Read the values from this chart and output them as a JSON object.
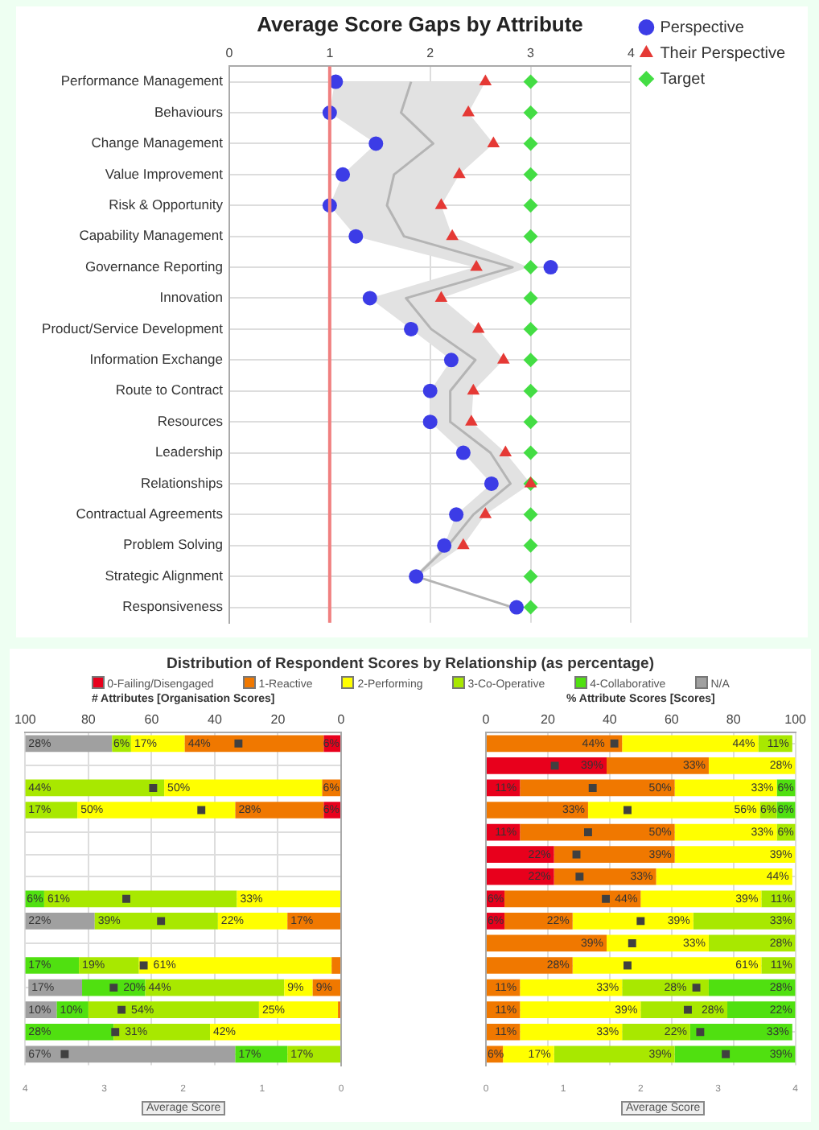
{
  "chart_data": [
    {
      "type": "scatter",
      "title": "Average Score Gaps by Attribute",
      "orientation": "horizontal",
      "categories": [
        "Performance Management",
        "Behaviours",
        "Change Management",
        "Value Improvement",
        "Risk & Opportunity",
        "Capability Management",
        "Governance Reporting",
        "Innovation",
        "Product/Service Development",
        "Information Exchange",
        "Route to Contract",
        "Resources",
        "Leadership",
        "Relationships",
        "Contractual Agreements",
        "Problem Solving",
        "Strategic Alignment",
        "Responsiveness"
      ],
      "xlim": [
        0,
        4
      ],
      "xticks": [
        0,
        1,
        2,
        3,
        4
      ],
      "grid": true,
      "legend": "right",
      "ref_lines": [
        {
          "axis": "x",
          "value": 1,
          "color": "#f08080"
        }
      ],
      "series": [
        {
          "type": "line",
          "color": "#b4b4b4",
          "marker": "none",
          "values": [
            1.81,
            1.71,
            2.03,
            1.64,
            1.57,
            1.74,
            2.82,
            1.76,
            2.01,
            2.45,
            2.2,
            2.2,
            2.6,
            2.8,
            2.43,
            2.18,
            1.86,
            2.82
          ],
          "lower": [
            1.05,
            1.0,
            1.46,
            1.13,
            1.0,
            1.26,
            2.44,
            1.4,
            1.81,
            2.21,
            2.0,
            2.0,
            2.33,
            2.61,
            2.26,
            2.14,
            1.84,
            2.8
          ],
          "upper": [
            2.55,
            2.38,
            2.63,
            2.29,
            2.11,
            2.22,
            2.98,
            2.11,
            2.48,
            2.73,
            2.43,
            2.41,
            2.75,
            3.0,
            2.55,
            2.33,
            1.88,
            2.84
          ]
        },
        {
          "name": "Perspective",
          "color": "#3c3ce6",
          "marker": "circle",
          "values": [
            1.06,
            1.0,
            1.46,
            1.13,
            1.0,
            1.26,
            3.2,
            1.4,
            1.81,
            2.21,
            2.0,
            2.0,
            2.33,
            2.61,
            2.26,
            2.14,
            1.86,
            2.86
          ]
        },
        {
          "name": "Their Perspective",
          "color": "#e53935",
          "marker": "triangle",
          "values": [
            2.55,
            2.38,
            2.63,
            2.29,
            2.11,
            2.22,
            2.46,
            2.11,
            2.48,
            2.73,
            2.43,
            2.41,
            2.75,
            3.0,
            2.55,
            2.33,
            null,
            null
          ]
        },
        {
          "name": "Target",
          "color": "#44dd44",
          "marker": "diamond",
          "values": [
            3,
            3,
            3,
            3,
            3,
            3,
            3,
            3,
            3,
            3,
            3,
            3,
            3,
            3,
            3,
            3,
            3,
            3
          ]
        }
      ]
    },
    {
      "type": "bar",
      "title": "Distribution of Respondent Scores by Relationship (as percentage)",
      "orientation": "horizontal",
      "stacked": true,
      "legend": "top",
      "grid": true,
      "categories": [
        null,
        null,
        null,
        null,
        null,
        null,
        null,
        null,
        null,
        null,
        null,
        null,
        null,
        null,
        null
      ],
      "xlabel": "# Attributes [Organisation Scores]",
      "xlim": [
        100,
        0
      ],
      "xticks": [
        100,
        80,
        60,
        40,
        20,
        0
      ],
      "x2label": "Average Score",
      "x2lim": [
        4,
        0
      ],
      "x2ticks": [
        4,
        3,
        2,
        1,
        0
      ],
      "series": [
        {
          "name": "0-Failing/Disengaged",
          "color": "#e8001c",
          "values": [
            5.5,
            null,
            null,
            5.5,
            null,
            null,
            null,
            null,
            null,
            null,
            null,
            null,
            null,
            null,
            null
          ],
          "value_labels": [
            "6%",
            null,
            null,
            "6%",
            null,
            null,
            null,
            null,
            null,
            null,
            null,
            null,
            null,
            null,
            null
          ]
        },
        {
          "name": "1-Reactive",
          "color": "#f07800",
          "values": [
            44,
            null,
            6,
            28,
            null,
            null,
            null,
            null,
            17,
            null,
            3,
            9,
            1,
            null,
            null
          ],
          "value_labels": [
            "44%",
            null,
            "6%",
            "28%",
            null,
            null,
            null,
            null,
            "17%",
            null,
            null,
            "9%",
            null,
            null,
            null
          ]
        },
        {
          "name": "2-Performing",
          "color": "#ffff00",
          "values": [
            17,
            null,
            50,
            50,
            null,
            null,
            null,
            33,
            22,
            null,
            61,
            9,
            25,
            41.5,
            null
          ],
          "value_labels": [
            "17%",
            null,
            "50%",
            "50%",
            null,
            null,
            null,
            "33%",
            "22%",
            null,
            "61%",
            "9%",
            "25%",
            "42%",
            null
          ]
        },
        {
          "name": "3-Co-Operative",
          "color": "#a8e800",
          "values": [
            6,
            null,
            44,
            16.5,
            null,
            null,
            null,
            61,
            39,
            null,
            19,
            44,
            54,
            30.5,
            17
          ],
          "value_labels": [
            "6%",
            null,
            "44%",
            "17%",
            null,
            null,
            null,
            "61%",
            "39%",
            null,
            "19%",
            "44%",
            "54%",
            "31%",
            "17%"
          ]
        },
        {
          "name": "4-Collaborative",
          "color": "#50e010",
          "values": [
            null,
            null,
            null,
            null,
            null,
            null,
            null,
            6,
            null,
            null,
            17,
            20,
            10,
            28,
            16.5
          ],
          "value_labels": [
            null,
            null,
            null,
            null,
            null,
            null,
            null,
            "6%",
            null,
            null,
            "17%",
            "20%",
            "10%",
            "28%",
            "17%"
          ]
        },
        {
          "name": "N/A",
          "color": "#a0a0a0",
          "values": [
            27.5,
            null,
            null,
            null,
            null,
            null,
            null,
            null,
            22,
            null,
            null,
            17,
            10,
            null,
            66.5
          ],
          "value_labels": [
            "28%",
            null,
            null,
            null,
            null,
            null,
            null,
            null,
            "22%",
            null,
            null,
            "17%",
            "10%",
            null,
            "67%"
          ]
        },
        {
          "type": "scatter",
          "axis": "x2",
          "marker": "square",
          "color": "#404040",
          "values": [
            1.3,
            null,
            2.38,
            1.77,
            null,
            null,
            null,
            2.72,
            2.28,
            null,
            2.5,
            2.88,
            2.78,
            2.86,
            3.5
          ]
        }
      ]
    },
    {
      "type": "bar",
      "orientation": "horizontal",
      "stacked": true,
      "grid": true,
      "categories": [
        null,
        null,
        null,
        null,
        null,
        null,
        null,
        null,
        null,
        null,
        null,
        null,
        null,
        null,
        null
      ],
      "xlabel": "% Attribute Scores [Scores]",
      "xlim": [
        0,
        100
      ],
      "xticks": [
        0,
        20,
        40,
        60,
        80,
        100
      ],
      "x2label": "Average Score",
      "x2lim": [
        0,
        4
      ],
      "x2ticks": [
        0,
        1,
        2,
        3,
        4
      ],
      "series": [
        {
          "color": "#e8001c",
          "values": [
            null,
            39,
            11,
            null,
            11,
            22,
            22,
            6,
            6,
            null,
            null,
            null,
            null,
            null,
            null
          ],
          "value_labels": [
            null,
            "39%",
            "11%",
            null,
            "11%",
            "22%",
            "22%",
            "6%",
            "6%",
            null,
            null,
            null,
            null,
            null,
            null
          ]
        },
        {
          "color": "#f07800",
          "values": [
            44,
            33,
            50,
            33,
            50,
            39,
            33,
            44,
            22,
            39,
            28,
            11,
            11,
            11,
            5.5
          ],
          "value_labels": [
            "44%",
            "33%",
            "50%",
            "33%",
            "50%",
            "39%",
            "33%",
            "44%",
            "22%",
            "39%",
            "28%",
            "11%",
            "11%",
            "11%",
            "6%"
          ]
        },
        {
          "color": "#ffff00",
          "values": [
            44,
            28,
            33,
            55.5,
            33,
            39,
            44,
            39,
            39,
            33,
            61,
            33,
            39,
            33,
            16.5
          ],
          "value_labels": [
            "44%",
            "28%",
            "33%",
            "56%",
            "33%",
            "39%",
            "44%",
            "39%",
            "39%",
            "33%",
            "61%",
            "33%",
            "39%",
            "33%",
            "17%"
          ]
        },
        {
          "color": "#a8e800",
          "values": [
            11,
            null,
            null,
            5.5,
            6,
            null,
            null,
            11,
            33,
            28,
            11,
            28,
            28,
            22,
            39
          ],
          "value_labels": [
            "11%",
            null,
            null,
            "6%",
            "6%",
            null,
            null,
            "11%",
            "33%",
            "28%",
            "11%",
            "28%",
            "28%",
            "22%",
            "39%"
          ]
        },
        {
          "color": "#50e010",
          "values": [
            null,
            null,
            6,
            6,
            null,
            null,
            null,
            null,
            null,
            null,
            null,
            28,
            22,
            33,
            39
          ],
          "value_labels": [
            null,
            null,
            "6%",
            "6%",
            null,
            null,
            null,
            null,
            null,
            null,
            null,
            "28%",
            "22%",
            "33%",
            "39%"
          ]
        },
        {
          "type": "scatter",
          "axis": "x2",
          "marker": "square",
          "color": "#404040",
          "values": [
            1.66,
            0.89,
            1.38,
            1.83,
            1.32,
            1.17,
            1.21,
            1.55,
            2.0,
            1.89,
            1.83,
            2.72,
            2.61,
            2.77,
            3.1
          ]
        }
      ]
    }
  ]
}
